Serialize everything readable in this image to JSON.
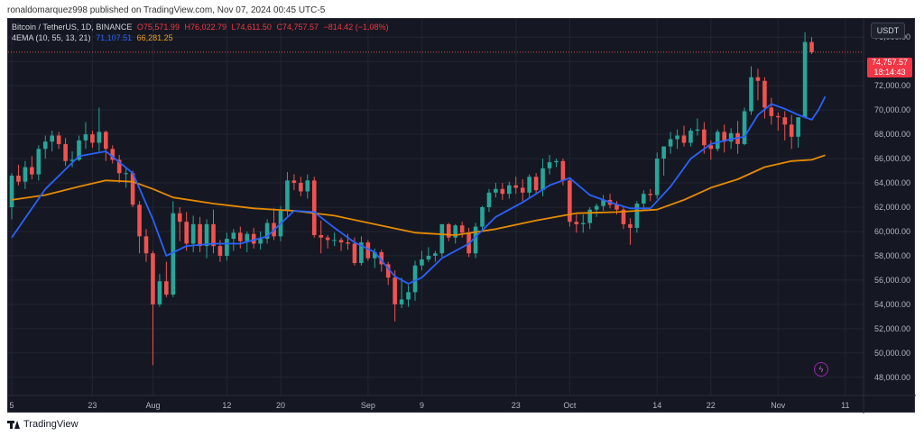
{
  "byline": "ronaldomarquez998 published on TradingView.com, Nov 07, 2024 00:45 UTC-5",
  "legend": {
    "symbol": "Bitcoin / TetherUS, 1D, BINANCE",
    "open": "O75,571.99",
    "high": "H76,022.79",
    "low": "L74,611.50",
    "close": "C74,757.57",
    "change": "−814.42 (−1.08%)",
    "ema_label": "4EMA (10, 55, 13, 21)",
    "ema_v1": "71,107.51",
    "ema_v2": "66,281.25"
  },
  "currency": "USDT",
  "last_price": {
    "price": "74,757.57",
    "countdown": "18:14:43"
  },
  "footer": "TradingView",
  "icons": [
    "lightning-icon",
    "tradingview-logo-icon"
  ],
  "colors": {
    "up": "#26a69a",
    "down": "#ef5350",
    "ema_fast": "#2962ff",
    "ema_slow": "#e68a00",
    "background": "#151822"
  },
  "chart_data": {
    "type": "candlestick",
    "y_axis": {
      "ylim": [
        46500,
        77500
      ],
      "ticks": [
        76000,
        74000,
        72000,
        70000,
        68000,
        66000,
        64000,
        62000,
        60000,
        58000,
        56000,
        54000,
        52000,
        50000,
        48000
      ],
      "tick_labels": [
        "76,000.00",
        "74,000.00",
        "72,000.00",
        "70,000.00",
        "68,000.00",
        "66,000.00",
        "64,000.00",
        "62,000.00",
        "60,000.00",
        "58,000.00",
        "56,000.00",
        "54,000.00",
        "52,000.00",
        "50,000.00",
        "48,000.00"
      ]
    },
    "x_axis": {
      "labels": [
        {
          "label": "5",
          "index": 0
        },
        {
          "label": "23",
          "index": 12
        },
        {
          "label": "Aug",
          "index": 21
        },
        {
          "label": "12",
          "index": 32
        },
        {
          "label": "20",
          "index": 40
        },
        {
          "label": "Sep",
          "index": 53
        },
        {
          "label": "9",
          "index": 61
        },
        {
          "label": "23",
          "index": 75
        },
        {
          "label": "Oct",
          "index": 83
        },
        {
          "label": "14",
          "index": 96
        },
        {
          "label": "22",
          "index": 104
        },
        {
          "label": "Nov",
          "index": 114
        },
        {
          "label": "11",
          "index": 124
        }
      ]
    },
    "candles": [
      {
        "o": 62000,
        "h": 64800,
        "l": 61000,
        "c": 64600
      },
      {
        "o": 64600,
        "h": 65500,
        "l": 63800,
        "c": 64100
      },
      {
        "o": 64100,
        "h": 65800,
        "l": 63500,
        "c": 65300
      },
      {
        "o": 65300,
        "h": 66200,
        "l": 64300,
        "c": 64700
      },
      {
        "o": 64700,
        "h": 67100,
        "l": 64200,
        "c": 66800
      },
      {
        "o": 66800,
        "h": 67900,
        "l": 66000,
        "c": 67400
      },
      {
        "o": 67400,
        "h": 68300,
        "l": 66600,
        "c": 67900
      },
      {
        "o": 67900,
        "h": 68200,
        "l": 66800,
        "c": 67200
      },
      {
        "o": 67200,
        "h": 67700,
        "l": 65400,
        "c": 65800
      },
      {
        "o": 65800,
        "h": 66600,
        "l": 65300,
        "c": 65900
      },
      {
        "o": 65900,
        "h": 67900,
        "l": 65800,
        "c": 67500
      },
      {
        "o": 67500,
        "h": 69000,
        "l": 66800,
        "c": 68000
      },
      {
        "o": 68000,
        "h": 68300,
        "l": 66900,
        "c": 67300
      },
      {
        "o": 67300,
        "h": 70200,
        "l": 66600,
        "c": 68200
      },
      {
        "o": 68200,
        "h": 68300,
        "l": 65800,
        "c": 66800
      },
      {
        "o": 66800,
        "h": 67100,
        "l": 65600,
        "c": 65900
      },
      {
        "o": 65900,
        "h": 66300,
        "l": 64000,
        "c": 64800
      },
      {
        "o": 64800,
        "h": 65300,
        "l": 63600,
        "c": 64800
      },
      {
        "o": 64800,
        "h": 65000,
        "l": 62000,
        "c": 62200
      },
      {
        "o": 62200,
        "h": 62500,
        "l": 58200,
        "c": 59600
      },
      {
        "o": 59600,
        "h": 60200,
        "l": 57500,
        "c": 58200
      },
      {
        "o": 58200,
        "h": 58400,
        "l": 49000,
        "c": 54000
      },
      {
        "o": 54000,
        "h": 56500,
        "l": 53800,
        "c": 55900
      },
      {
        "o": 55900,
        "h": 57500,
        "l": 54600,
        "c": 54800
      },
      {
        "o": 54800,
        "h": 62500,
        "l": 54600,
        "c": 61500
      },
      {
        "o": 61500,
        "h": 62000,
        "l": 59200,
        "c": 60800
      },
      {
        "o": 60800,
        "h": 61600,
        "l": 58400,
        "c": 59000
      },
      {
        "o": 59000,
        "h": 61300,
        "l": 58300,
        "c": 60600
      },
      {
        "o": 60600,
        "h": 61200,
        "l": 58300,
        "c": 58800
      },
      {
        "o": 58800,
        "h": 61000,
        "l": 57800,
        "c": 60600
      },
      {
        "o": 60600,
        "h": 61800,
        "l": 58200,
        "c": 58800
      },
      {
        "o": 58800,
        "h": 59300,
        "l": 57500,
        "c": 58000
      },
      {
        "o": 58000,
        "h": 59900,
        "l": 57600,
        "c": 59400
      },
      {
        "o": 59400,
        "h": 60200,
        "l": 58400,
        "c": 59900
      },
      {
        "o": 59900,
        "h": 60400,
        "l": 58600,
        "c": 59200
      },
      {
        "o": 59200,
        "h": 60000,
        "l": 58300,
        "c": 59800
      },
      {
        "o": 59800,
        "h": 60300,
        "l": 58600,
        "c": 59000
      },
      {
        "o": 59000,
        "h": 60000,
        "l": 58500,
        "c": 59400
      },
      {
        "o": 59400,
        "h": 61000,
        "l": 59000,
        "c": 60700
      },
      {
        "o": 60700,
        "h": 61900,
        "l": 59300,
        "c": 59600
      },
      {
        "o": 59600,
        "h": 62100,
        "l": 59200,
        "c": 61700
      },
      {
        "o": 61700,
        "h": 64900,
        "l": 61300,
        "c": 64200
      },
      {
        "o": 64200,
        "h": 64700,
        "l": 63400,
        "c": 64000
      },
      {
        "o": 64000,
        "h": 64500,
        "l": 62900,
        "c": 63300
      },
      {
        "o": 63300,
        "h": 64700,
        "l": 62700,
        "c": 64200
      },
      {
        "o": 64200,
        "h": 64500,
        "l": 59500,
        "c": 59700
      },
      {
        "o": 59700,
        "h": 60900,
        "l": 58200,
        "c": 59500
      },
      {
        "o": 59500,
        "h": 59700,
        "l": 58600,
        "c": 59300
      },
      {
        "o": 59300,
        "h": 59900,
        "l": 58800,
        "c": 59300
      },
      {
        "o": 59300,
        "h": 59500,
        "l": 58400,
        "c": 59100
      },
      {
        "o": 59100,
        "h": 59800,
        "l": 58500,
        "c": 59000
      },
      {
        "o": 59000,
        "h": 59500,
        "l": 57200,
        "c": 57400
      },
      {
        "o": 57400,
        "h": 59600,
        "l": 57200,
        "c": 59100
      },
      {
        "o": 59100,
        "h": 59300,
        "l": 57600,
        "c": 57800
      },
      {
        "o": 57800,
        "h": 58600,
        "l": 57000,
        "c": 58300
      },
      {
        "o": 58300,
        "h": 58500,
        "l": 56700,
        "c": 57300
      },
      {
        "o": 57300,
        "h": 57500,
        "l": 55600,
        "c": 56200
      },
      {
        "o": 56200,
        "h": 56800,
        "l": 52600,
        "c": 54000
      },
      {
        "o": 54000,
        "h": 56200,
        "l": 53700,
        "c": 54400
      },
      {
        "o": 54400,
        "h": 55600,
        "l": 53800,
        "c": 55000
      },
      {
        "o": 55000,
        "h": 57600,
        "l": 54300,
        "c": 57200
      },
      {
        "o": 57200,
        "h": 58400,
        "l": 56800,
        "c": 57700
      },
      {
        "o": 57700,
        "h": 58700,
        "l": 57500,
        "c": 58000
      },
      {
        "o": 58000,
        "h": 58400,
        "l": 57500,
        "c": 58200
      },
      {
        "o": 58200,
        "h": 60600,
        "l": 57900,
        "c": 60600
      },
      {
        "o": 60600,
        "h": 60700,
        "l": 59200,
        "c": 59500
      },
      {
        "o": 59500,
        "h": 60600,
        "l": 59000,
        "c": 60500
      },
      {
        "o": 60500,
        "h": 60800,
        "l": 59500,
        "c": 59900
      },
      {
        "o": 59900,
        "h": 60300,
        "l": 57900,
        "c": 58200
      },
      {
        "o": 58200,
        "h": 60700,
        "l": 57800,
        "c": 60400
      },
      {
        "o": 60400,
        "h": 62100,
        "l": 60000,
        "c": 62000
      },
      {
        "o": 62000,
        "h": 63500,
        "l": 61600,
        "c": 63200
      },
      {
        "o": 63200,
        "h": 64000,
        "l": 62800,
        "c": 63500
      },
      {
        "o": 63500,
        "h": 64000,
        "l": 62600,
        "c": 63100
      },
      {
        "o": 63100,
        "h": 64100,
        "l": 62700,
        "c": 63800
      },
      {
        "o": 63800,
        "h": 64500,
        "l": 63100,
        "c": 63600
      },
      {
        "o": 63600,
        "h": 64300,
        "l": 62500,
        "c": 63200
      },
      {
        "o": 63200,
        "h": 64700,
        "l": 62800,
        "c": 64500
      },
      {
        "o": 64500,
        "h": 64800,
        "l": 63100,
        "c": 63400
      },
      {
        "o": 63400,
        "h": 66000,
        "l": 62900,
        "c": 65200
      },
      {
        "o": 65200,
        "h": 66300,
        "l": 64700,
        "c": 65700
      },
      {
        "o": 65700,
        "h": 66000,
        "l": 65300,
        "c": 65800
      },
      {
        "o": 65800,
        "h": 66000,
        "l": 63800,
        "c": 64200
      },
      {
        "o": 64200,
        "h": 64400,
        "l": 60400,
        "c": 60800
      },
      {
        "o": 60800,
        "h": 61400,
        "l": 59900,
        "c": 60600
      },
      {
        "o": 60600,
        "h": 61400,
        "l": 59900,
        "c": 60700
      },
      {
        "o": 60700,
        "h": 62000,
        "l": 60200,
        "c": 61800
      },
      {
        "o": 61800,
        "h": 62300,
        "l": 61200,
        "c": 62100
      },
      {
        "o": 62100,
        "h": 63000,
        "l": 61700,
        "c": 62600
      },
      {
        "o": 62600,
        "h": 63100,
        "l": 61900,
        "c": 62200
      },
      {
        "o": 62200,
        "h": 62500,
        "l": 61400,
        "c": 61800
      },
      {
        "o": 61800,
        "h": 62100,
        "l": 60200,
        "c": 60600
      },
      {
        "o": 60600,
        "h": 61100,
        "l": 58900,
        "c": 60300
      },
      {
        "o": 60300,
        "h": 62500,
        "l": 59900,
        "c": 62300
      },
      {
        "o": 62300,
        "h": 63400,
        "l": 61700,
        "c": 63100
      },
      {
        "o": 63100,
        "h": 63500,
        "l": 62500,
        "c": 63000
      },
      {
        "o": 63000,
        "h": 66500,
        "l": 62700,
        "c": 66000
      },
      {
        "o": 66000,
        "h": 67000,
        "l": 64600,
        "c": 67000
      },
      {
        "o": 67000,
        "h": 68200,
        "l": 66400,
        "c": 67600
      },
      {
        "o": 67600,
        "h": 68400,
        "l": 66800,
        "c": 67900
      },
      {
        "o": 67900,
        "h": 68700,
        "l": 67000,
        "c": 67300
      },
      {
        "o": 67300,
        "h": 68500,
        "l": 67000,
        "c": 68300
      },
      {
        "o": 68300,
        "h": 69300,
        "l": 67900,
        "c": 68400
      },
      {
        "o": 68400,
        "h": 69000,
        "l": 66400,
        "c": 67100
      },
      {
        "o": 67100,
        "h": 67500,
        "l": 65900,
        "c": 66800
      },
      {
        "o": 66800,
        "h": 68400,
        "l": 66600,
        "c": 68200
      },
      {
        "o": 68200,
        "h": 68800,
        "l": 66500,
        "c": 67400
      },
      {
        "o": 67400,
        "h": 68500,
        "l": 66800,
        "c": 68100
      },
      {
        "o": 68100,
        "h": 69100,
        "l": 66400,
        "c": 67200
      },
      {
        "o": 67200,
        "h": 70200,
        "l": 67100,
        "c": 69900
      },
      {
        "o": 69900,
        "h": 73600,
        "l": 69600,
        "c": 72700
      },
      {
        "o": 72700,
        "h": 73400,
        "l": 70800,
        "c": 72400
      },
      {
        "o": 72400,
        "h": 72700,
        "l": 69300,
        "c": 70200
      },
      {
        "o": 70200,
        "h": 71000,
        "l": 68800,
        "c": 69500
      },
      {
        "o": 69500,
        "h": 69800,
        "l": 68300,
        "c": 69400
      },
      {
        "o": 69400,
        "h": 69900,
        "l": 67500,
        "c": 68800
      },
      {
        "o": 68800,
        "h": 69600,
        "l": 66800,
        "c": 67800
      },
      {
        "o": 67800,
        "h": 69400,
        "l": 66900,
        "c": 69400
      },
      {
        "o": 69400,
        "h": 76400,
        "l": 69300,
        "c": 75600
      },
      {
        "o": 75600,
        "h": 76000,
        "l": 74600,
        "c": 74760
      }
    ],
    "ema_fast": [
      [
        0,
        59500
      ],
      [
        5,
        63500
      ],
      [
        10,
        66200
      ],
      [
        14,
        66600
      ],
      [
        18,
        64800
      ],
      [
        21,
        61000
      ],
      [
        23,
        58000
      ],
      [
        26,
        58800
      ],
      [
        30,
        59000
      ],
      [
        34,
        59000
      ],
      [
        38,
        59600
      ],
      [
        42,
        61700
      ],
      [
        45,
        61600
      ],
      [
        48,
        60300
      ],
      [
        51,
        59100
      ],
      [
        54,
        58300
      ],
      [
        57,
        56300
      ],
      [
        59,
        55700
      ],
      [
        61,
        56200
      ],
      [
        64,
        57800
      ],
      [
        68,
        59000
      ],
      [
        72,
        61200
      ],
      [
        76,
        62400
      ],
      [
        80,
        63800
      ],
      [
        83,
        64400
      ],
      [
        86,
        63000
      ],
      [
        89,
        62400
      ],
      [
        92,
        61900
      ],
      [
        95,
        61900
      ],
      [
        98,
        63700
      ],
      [
        101,
        66000
      ],
      [
        104,
        67200
      ],
      [
        107,
        67600
      ],
      [
        109,
        67800
      ],
      [
        111,
        69600
      ],
      [
        113,
        70500
      ],
      [
        115,
        70100
      ],
      [
        117,
        69600
      ],
      [
        119,
        69200
      ],
      [
        120,
        70000
      ],
      [
        121,
        71107
      ]
    ],
    "ema_slow": [
      [
        0,
        62600
      ],
      [
        5,
        63000
      ],
      [
        10,
        63700
      ],
      [
        14,
        64200
      ],
      [
        18,
        64100
      ],
      [
        21,
        63500
      ],
      [
        24,
        62800
      ],
      [
        30,
        62300
      ],
      [
        36,
        61900
      ],
      [
        42,
        61700
      ],
      [
        48,
        61300
      ],
      [
        54,
        60600
      ],
      [
        60,
        59900
      ],
      [
        66,
        59700
      ],
      [
        72,
        60200
      ],
      [
        78,
        60900
      ],
      [
        84,
        61500
      ],
      [
        90,
        61600
      ],
      [
        96,
        61800
      ],
      [
        100,
        62600
      ],
      [
        104,
        63600
      ],
      [
        108,
        64300
      ],
      [
        112,
        65300
      ],
      [
        116,
        65800
      ],
      [
        119,
        65900
      ],
      [
        121,
        66281
      ]
    ]
  }
}
